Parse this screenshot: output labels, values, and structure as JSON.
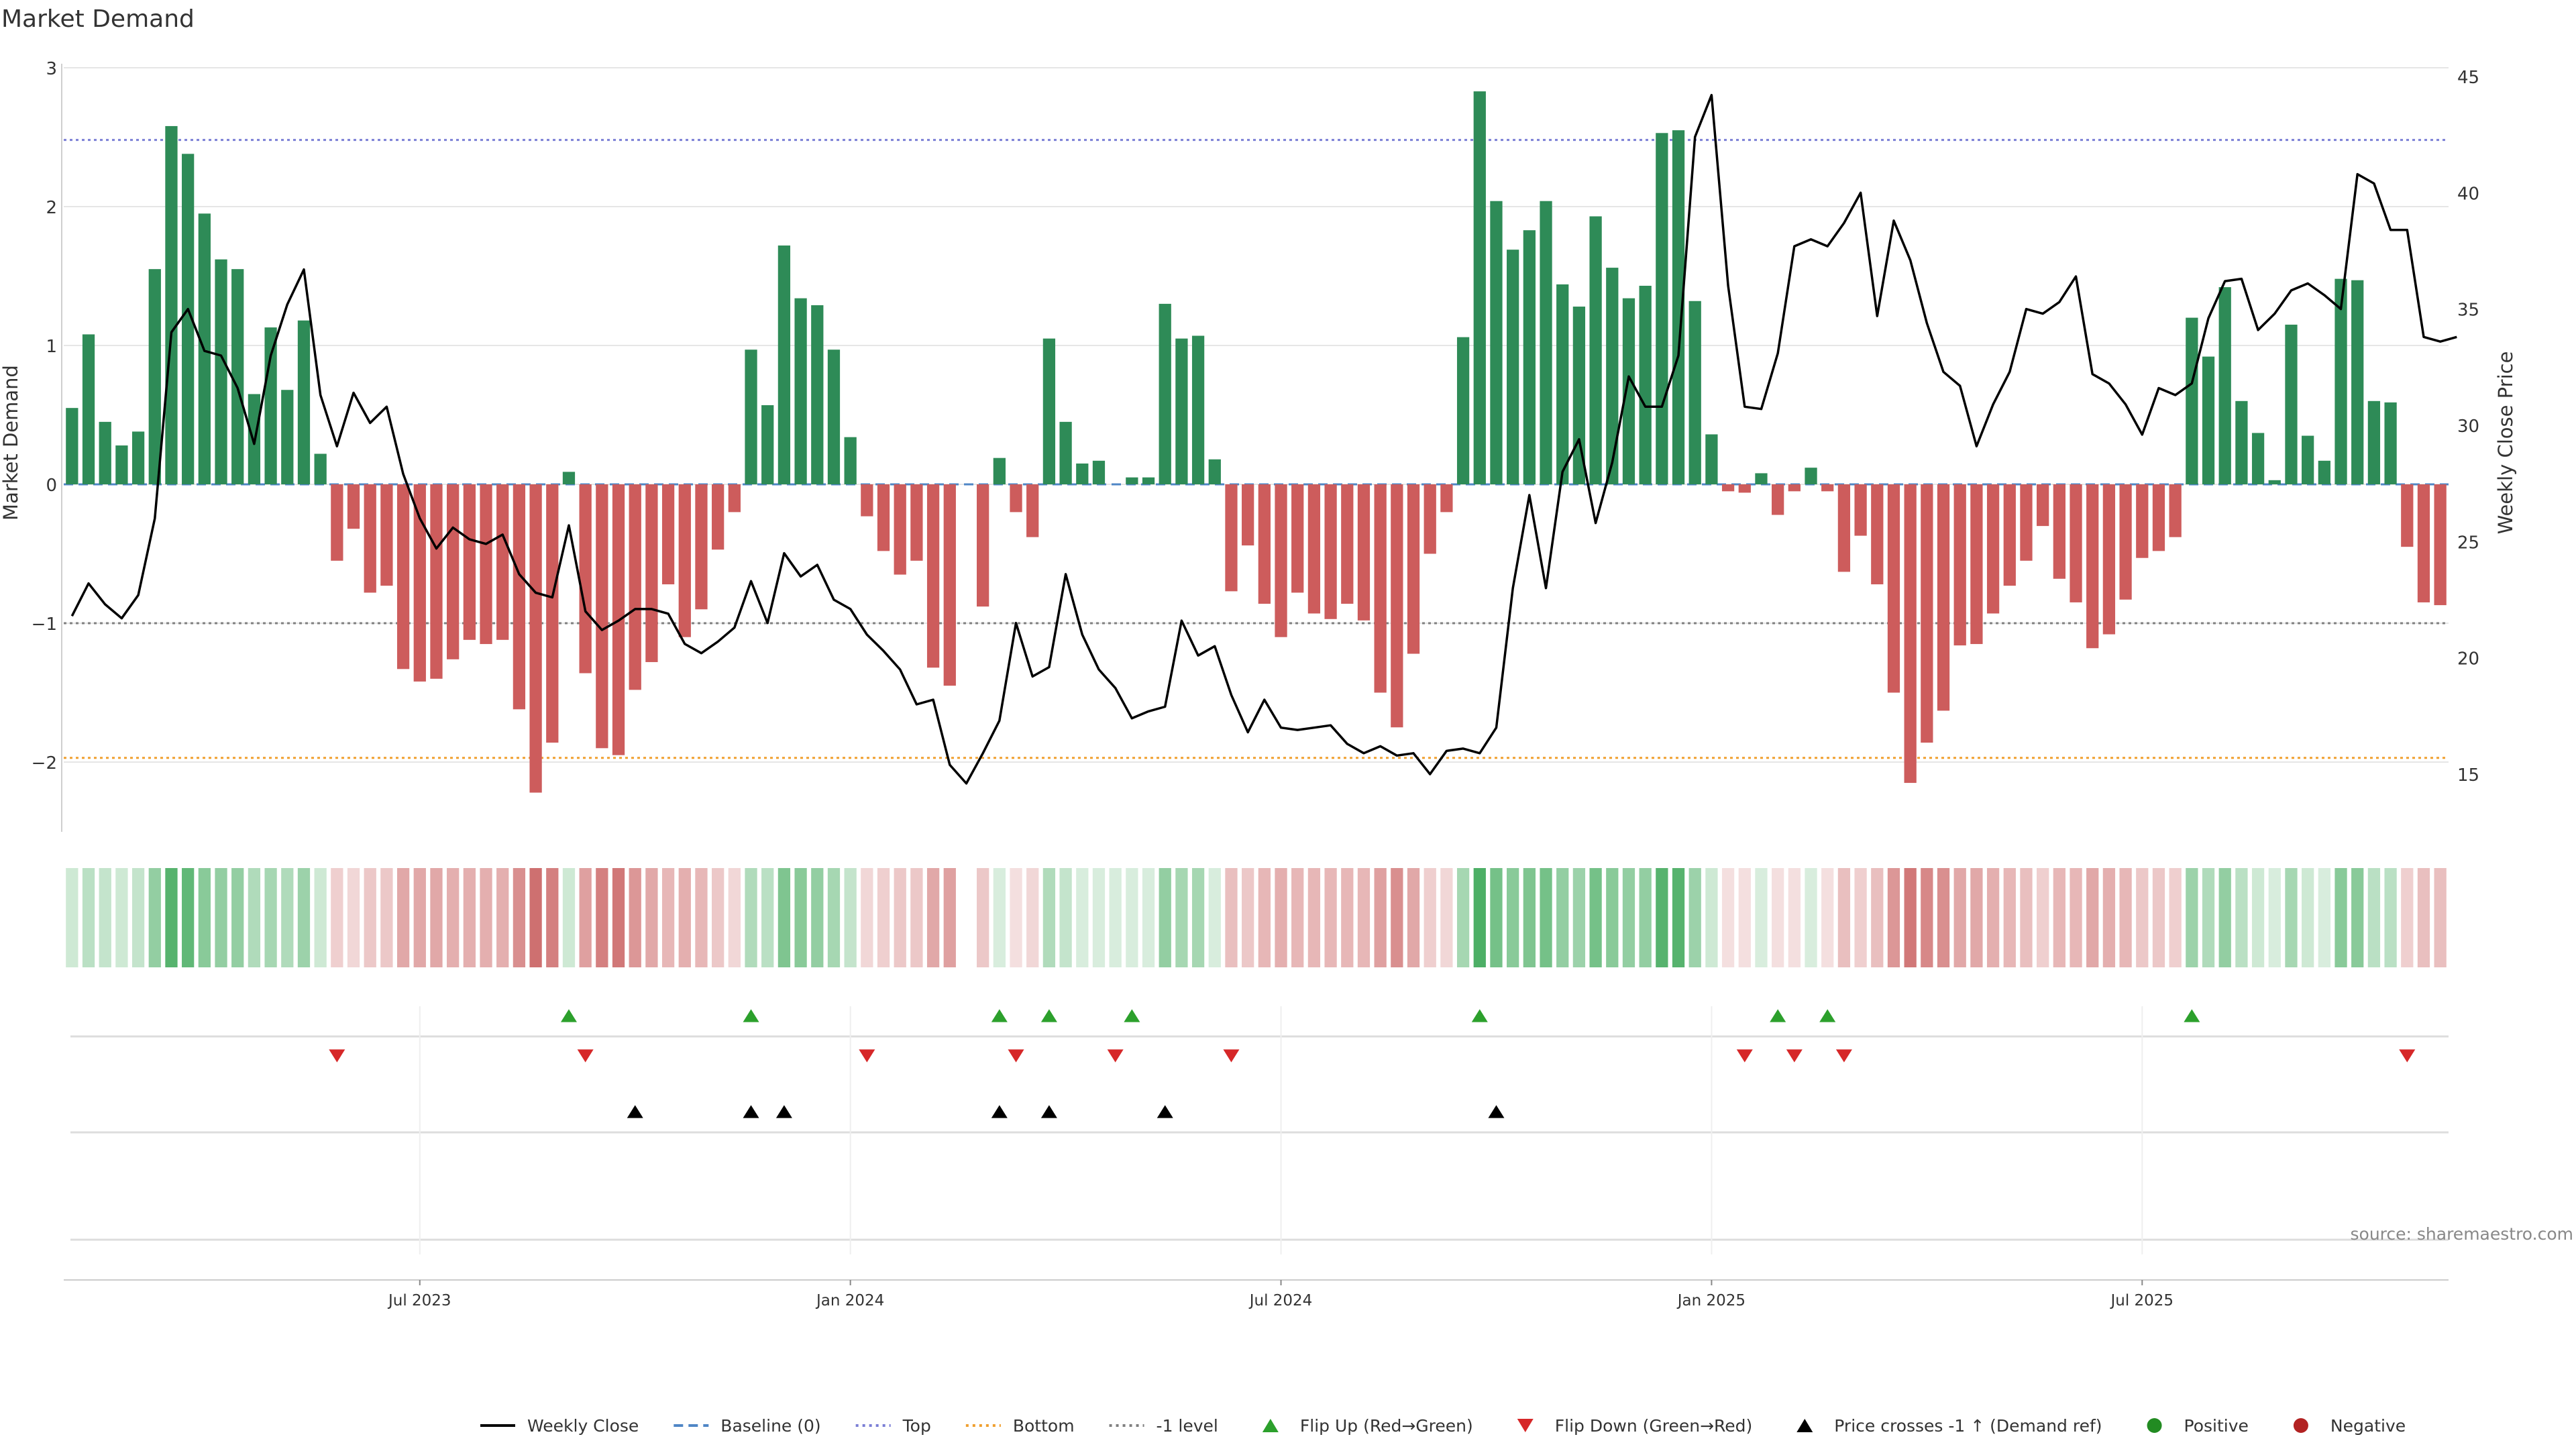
{
  "title": "Market Demand",
  "source": "source: sharemaestro.com",
  "colors": {
    "positive": "#2e8b57",
    "negative": "#cd5c5c",
    "price_line": "#000000",
    "top_line": "#7b7fd6",
    "bottom_line": "#f0a030",
    "minus1_line": "#808080",
    "baseline": "#4f86c6",
    "flip_up": "#2ca02c",
    "flip_down": "#d62728",
    "cross": "#000000",
    "grid": "#e6e6e6"
  },
  "chart_data": {
    "type": "bar",
    "title": "Market Demand",
    "ylabel_left": "Market Demand",
    "ylabel_right": "Weekly Close Price",
    "ylim_left": [
      -2.5,
      3
    ],
    "yticks_left": [
      3,
      2,
      1,
      0,
      -1,
      -2
    ],
    "yticks_left_labels": [
      "3",
      "2",
      "1",
      "0",
      "−1",
      "−2"
    ],
    "ylim_right": [
      13,
      45
    ],
    "yticks_right": [
      45,
      40,
      35,
      30,
      25,
      20,
      15
    ],
    "yticks_right_labels": [
      "45",
      "40",
      "35",
      "30",
      "25",
      "20",
      "15"
    ],
    "xaxis": {
      "ticks": [
        21,
        47,
        73,
        99,
        125
      ],
      "tick_labels": [
        "Jul 2023",
        "Jan 2024",
        "Jul 2024",
        "Jan 2025",
        "Jul 2025"
      ],
      "weeks": 144
    },
    "reference_lines": {
      "top": 2.48,
      "bottom": -1.97,
      "minus1": -1,
      "baseline": 0
    },
    "demand": [
      0.55,
      1.08,
      0.45,
      0.28,
      0.38,
      1.55,
      2.58,
      2.38,
      1.95,
      1.62,
      1.55,
      0.65,
      1.13,
      0.68,
      1.18,
      0.22,
      -0.55,
      -0.32,
      -0.78,
      -0.73,
      -1.33,
      -1.42,
      -1.4,
      -1.26,
      -1.12,
      -1.15,
      -1.12,
      -1.62,
      -2.22,
      -1.86,
      0.09,
      -1.36,
      -1.9,
      -1.95,
      -1.48,
      -1.28,
      -0.72,
      -1.1,
      -0.9,
      -0.47,
      -0.2,
      0.97,
      0.57,
      1.72,
      1.34,
      1.29,
      0.97,
      0.34,
      -0.23,
      -0.48,
      -0.65,
      -0.55,
      -1.32,
      -1.45,
      0.0,
      -0.88,
      0.19,
      -0.2,
      -0.38,
      1.05,
      0.45,
      0.15,
      0.17,
      0.0,
      0.05,
      0.05,
      1.3,
      1.05,
      1.07,
      0.18,
      -0.77,
      -0.44,
      -0.86,
      -1.1,
      -0.78,
      -0.93,
      -0.97,
      -0.86,
      -0.98,
      -1.5,
      -1.75,
      -1.22,
      -0.5,
      -0.2,
      1.06,
      2.83,
      2.04,
      1.69,
      1.83,
      2.04,
      1.44,
      1.28,
      1.93,
      1.56,
      1.34,
      1.43,
      2.53,
      2.55,
      1.32,
      0.36,
      -0.05,
      -0.06,
      0.08,
      -0.22,
      -0.05,
      0.12,
      -0.05,
      -0.63,
      -0.37,
      -0.72,
      -1.5,
      -2.15,
      -1.86,
      -1.63,
      -1.16,
      -1.15,
      -0.93,
      -0.73,
      -0.55,
      -0.3,
      -0.68,
      -0.85,
      -1.18,
      -1.08,
      -0.83,
      -0.53,
      -0.48,
      -0.38,
      1.2,
      0.92,
      1.42,
      0.6,
      0.37,
      0.03,
      1.15,
      0.35,
      0.17,
      1.48,
      1.47,
      0.6,
      0.59,
      -0.45,
      -0.85,
      -0.87
    ],
    "price": [
      21.8,
      23.2,
      22.3,
      21.7,
      22.7,
      26.0,
      34.0,
      35.0,
      33.2,
      33.0,
      31.6,
      29.2,
      33.0,
      35.2,
      36.7,
      31.3,
      29.1,
      31.4,
      30.1,
      30.8,
      27.9,
      26.0,
      24.7,
      25.6,
      25.1,
      24.9,
      25.3,
      23.6,
      22.8,
      22.6,
      25.7,
      22.0,
      21.2,
      21.6,
      22.1,
      22.1,
      21.9,
      20.6,
      20.2,
      20.7,
      21.3,
      23.3,
      21.5,
      24.5,
      23.5,
      24.0,
      22.5,
      22.1,
      21.0,
      20.3,
      19.5,
      18.0,
      18.2,
      15.4,
      14.6,
      15.9,
      17.3,
      21.5,
      19.2,
      19.6,
      23.6,
      21.0,
      19.5,
      18.7,
      17.4,
      17.7,
      17.9,
      21.6,
      20.1,
      20.5,
      18.4,
      16.8,
      18.2,
      17.0,
      16.9,
      17.0,
      17.1,
      16.3,
      15.9,
      16.2,
      15.8,
      15.9,
      15.0,
      16.0,
      16.1,
      15.9,
      17.0,
      23.0,
      27.0,
      23.0,
      28.0,
      29.4,
      25.8,
      28.4,
      32.1,
      30.8,
      30.8,
      33.0,
      42.4,
      44.2,
      36.0,
      30.8,
      30.7,
      33.1,
      37.7,
      38.0,
      37.7,
      38.7,
      40.0,
      34.7,
      38.8,
      37.1,
      34.4,
      32.3,
      31.7,
      29.1,
      30.9,
      32.3,
      35.0,
      34.8,
      35.3,
      36.4,
      32.2,
      31.8,
      30.9,
      29.6,
      31.6,
      31.3,
      31.8,
      34.6,
      36.2,
      36.3,
      34.1,
      34.8,
      35.8,
      36.1,
      35.6,
      35.0,
      40.8,
      40.4,
      38.4,
      38.4,
      33.8,
      33.6,
      33.8
    ],
    "strip_alpha": [
      0.25,
      0.35,
      0.3,
      0.25,
      0.3,
      0.55,
      0.85,
      0.8,
      0.6,
      0.55,
      0.55,
      0.4,
      0.45,
      0.4,
      0.5,
      0.25,
      0.3,
      0.25,
      0.35,
      0.35,
      0.55,
      0.55,
      0.55,
      0.5,
      0.5,
      0.5,
      0.5,
      0.7,
      0.9,
      0.8,
      0.25,
      0.6,
      0.8,
      0.85,
      0.65,
      0.55,
      0.45,
      0.5,
      0.45,
      0.35,
      0.25,
      0.4,
      0.35,
      0.65,
      0.6,
      0.55,
      0.45,
      0.3,
      0.25,
      0.3,
      0.35,
      0.35,
      0.55,
      0.6,
      0.0,
      0.35,
      0.2,
      0.2,
      0.25,
      0.4,
      0.3,
      0.2,
      0.2,
      0.2,
      0.2,
      0.2,
      0.55,
      0.45,
      0.45,
      0.2,
      0.4,
      0.35,
      0.45,
      0.5,
      0.45,
      0.45,
      0.45,
      0.45,
      0.45,
      0.6,
      0.7,
      0.55,
      0.3,
      0.25,
      0.45,
      0.9,
      0.7,
      0.6,
      0.65,
      0.7,
      0.55,
      0.5,
      0.7,
      0.6,
      0.55,
      0.55,
      0.85,
      0.85,
      0.5,
      0.25,
      0.2,
      0.2,
      0.2,
      0.2,
      0.2,
      0.2,
      0.2,
      0.4,
      0.3,
      0.4,
      0.65,
      0.85,
      0.75,
      0.7,
      0.55,
      0.55,
      0.5,
      0.45,
      0.4,
      0.3,
      0.45,
      0.45,
      0.55,
      0.5,
      0.45,
      0.35,
      0.35,
      0.3,
      0.5,
      0.4,
      0.55,
      0.35,
      0.25,
      0.2,
      0.45,
      0.25,
      0.2,
      0.6,
      0.6,
      0.35,
      0.35,
      0.3,
      0.4,
      0.4
    ],
    "flip_up_weeks": [
      30,
      41,
      56,
      59,
      64,
      85,
      103,
      106,
      128
    ],
    "flip_down_weeks": [
      16,
      31,
      48,
      57,
      63,
      70,
      101,
      104,
      107,
      141
    ],
    "price_cross_weeks": [
      34,
      41,
      43,
      56,
      59,
      66,
      86
    ],
    "legend": [
      {
        "label": "Weekly Close",
        "symbol": "line-solid",
        "color": "#000000"
      },
      {
        "label": "Baseline (0)",
        "symbol": "line-dashed",
        "color": "#4f86c6"
      },
      {
        "label": "Top",
        "symbol": "line-dotted",
        "color": "#7b7fd6"
      },
      {
        "label": "Bottom",
        "symbol": "line-dotted",
        "color": "#f0a030"
      },
      {
        "label": "-1 level",
        "symbol": "line-dotted",
        "color": "#808080"
      },
      {
        "label": "Flip Up (Red→Green)",
        "symbol": "triangle-up",
        "color": "#2ca02c"
      },
      {
        "label": "Flip Down (Green→Red)",
        "symbol": "triangle-down",
        "color": "#d62728"
      },
      {
        "label": "Price crosses -1 ↑ (Demand ref)",
        "symbol": "triangle-up",
        "color": "#000000"
      },
      {
        "label": "Positive",
        "symbol": "circle",
        "color": "#228b22"
      },
      {
        "label": "Negative",
        "symbol": "circle",
        "color": "#b22222"
      }
    ]
  }
}
